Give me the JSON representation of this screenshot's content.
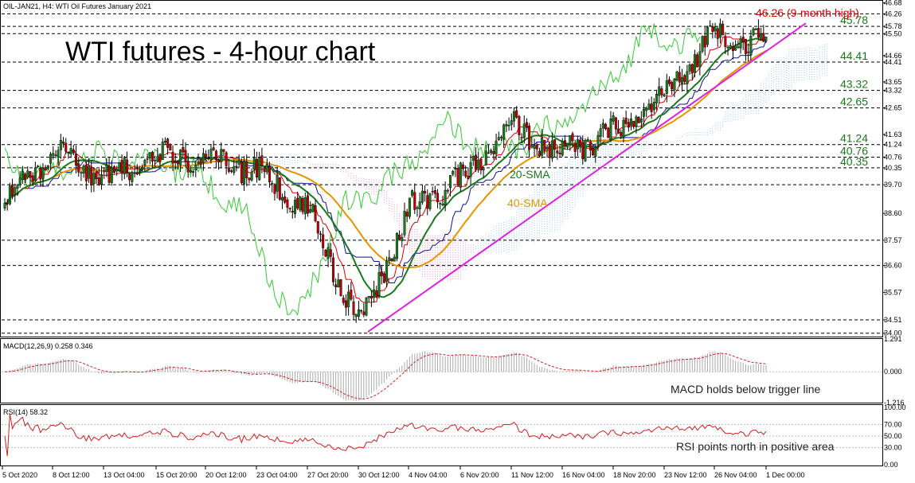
{
  "header": {
    "symbol_info": "OIL-JAN21, H4:  WTI Oil Futures January 2021",
    "chart_title": "WTI futures - 4-hour chart",
    "high_note": "46.26 (9-month high)"
  },
  "colors": {
    "bull_body": "#1a7a1a",
    "bear_body": "#c00000",
    "sma20": "#1a7a1a",
    "sma40": "#e69500",
    "trendline": "#e020e0",
    "cloud_bull": "#9cc7e6",
    "cloud_bear": "#e88ec8",
    "chikou": "#33cc33",
    "tenkan": "#e00000",
    "kijun": "#1010a0",
    "level_label": "#1a7a1a",
    "high_label": "#e00000",
    "macd_hist": "#aaaaaa",
    "macd_signal": "#d02020",
    "rsi_line": "#d02020"
  },
  "price_axis_ticks": [
    "46.68",
    "46.26",
    "45.78",
    "45.50",
    "44.66",
    "44.41",
    "43.65",
    "43.32",
    "42.65",
    "41.63",
    "41.24",
    "40.76",
    "40.35",
    "39.70",
    "38.60",
    "37.57",
    "36.60",
    "35.57",
    "34.51",
    "34.00"
  ],
  "levels": [
    {
      "value": 45.78,
      "label": "45.78"
    },
    {
      "value": 44.41,
      "label": "44.41"
    },
    {
      "value": 43.32,
      "label": "43.32"
    },
    {
      "value": 42.65,
      "label": "42.65"
    },
    {
      "value": 41.24,
      "label": "41.24"
    },
    {
      "value": 40.76,
      "label": "40.76"
    },
    {
      "value": 40.35,
      "label": "40.35"
    }
  ],
  "extra_dashed": [
    46.26,
    45.5,
    39.7,
    37.57,
    36.6,
    34.51,
    34.0
  ],
  "sma_labels": {
    "sma20": "20-SMA",
    "sma40": "40-SMA"
  },
  "macd": {
    "title": "MACD(12,26,9) 0.258 0.346",
    "ticks": [
      "1.291",
      "0.000",
      "-1.216"
    ],
    "annotation": "MACD holds below trigger line"
  },
  "rsi": {
    "title": "RSI(14) 58.32",
    "ticks": [
      "100.00",
      "70.00",
      "50.00",
      "30.00",
      "0.00"
    ],
    "annotation": "RSI points north in positive area"
  },
  "time_axis": [
    "5 Oct 2020",
    "8 Oct 12:00",
    "13 Oct 04:00",
    "15 Oct 20:00",
    "20 Oct 12:00",
    "23 Oct 04:00",
    "27 Oct 20:00",
    "30 Oct 12:00",
    "4 Nov 04:00",
    "6 Nov 20:00",
    "11 Nov 12:00",
    "16 Nov 04:00",
    "18 Nov 20:00",
    "23 Nov 12:00",
    "26 Nov 04:00",
    "1 Dec 00:00"
  ],
  "chart_data": {
    "type": "candlestick",
    "title": "WTI futures - 4-hour chart",
    "subtitle": "OIL-JAN21, H4: WTI Oil Futures January 2021",
    "ylim": [
      33.9,
      46.7
    ],
    "close_path": [
      [
        "5 Oct 2020",
        38.9
      ],
      [
        "8 Oct 12:00",
        41.0
      ],
      [
        "13 Oct 04:00",
        40.0
      ],
      [
        "15 Oct 20:00",
        40.7
      ],
      [
        "20 Oct 12:00",
        40.9
      ],
      [
        "23 Oct 04:00",
        40.2
      ],
      [
        "27 Oct 20:00",
        38.6
      ],
      [
        "30 Oct 12:00",
        34.3
      ],
      [
        "4 Nov 04:00",
        38.8
      ],
      [
        "6 Nov 20:00",
        39.9
      ],
      [
        "11 Nov 12:00",
        41.9
      ],
      [
        "16 Nov 04:00",
        40.9
      ],
      [
        "18 Nov 20:00",
        41.7
      ],
      [
        "23 Nov 12:00",
        43.1
      ],
      [
        "26 Nov 04:00",
        45.6
      ],
      [
        "1 Dec 00:00",
        45.0
      ]
    ],
    "series": [
      {
        "name": "20-SMA",
        "values": [
          38.8,
          40.5,
          40.4,
          40.6,
          40.7,
          40.5,
          39.5,
          36.7,
          37.1,
          38.9,
          40.7,
          41.0,
          41.3,
          42.4,
          44.5,
          45.1
        ]
      },
      {
        "name": "40-SMA",
        "values": [
          38.6,
          39.5,
          40.3,
          40.6,
          40.7,
          40.6,
          40.2,
          38.6,
          37.6,
          37.9,
          39.5,
          40.4,
          40.9,
          41.7,
          43.2,
          44.3
        ]
      }
    ],
    "annotations": [
      "46.26 (9-month high)"
    ],
    "macd": {
      "macd": 0.258,
      "signal": 0.346,
      "ylim": [
        -1.216,
        1.291
      ]
    },
    "rsi": {
      "value": 58.32,
      "ylim": [
        0,
        100
      ],
      "levels": [
        30,
        50,
        70
      ]
    }
  }
}
